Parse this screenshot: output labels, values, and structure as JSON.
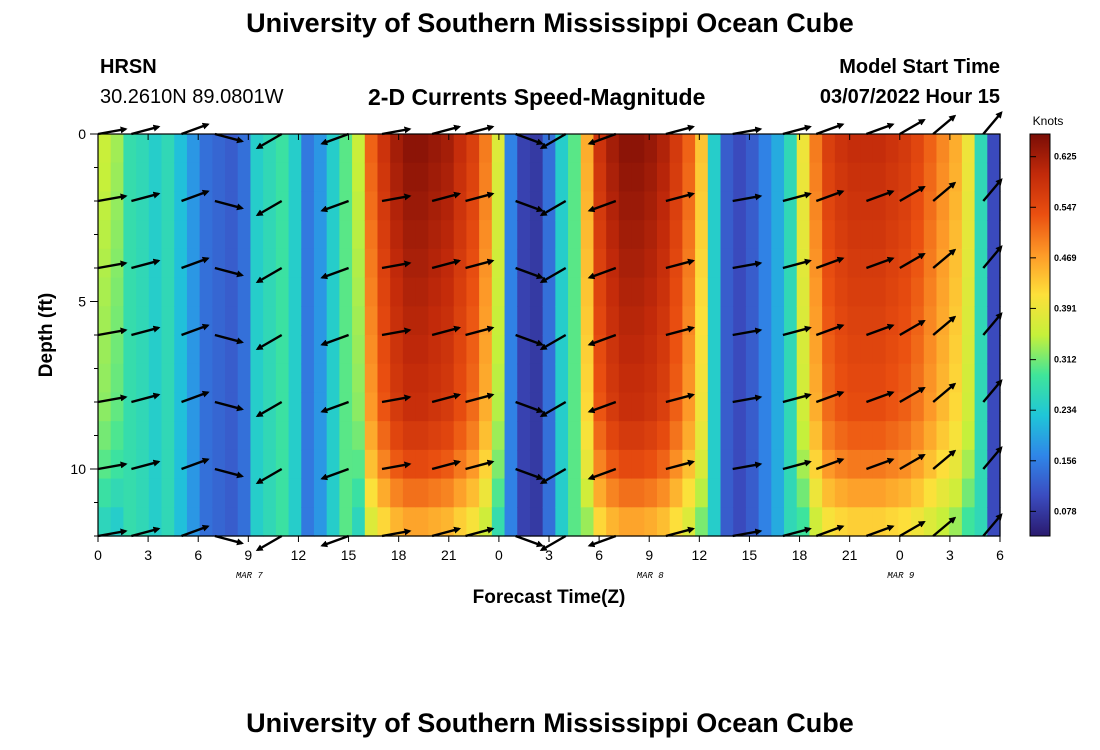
{
  "header": {
    "title": "University of Southern Mississippi Ocean Cube",
    "station": "HRSN",
    "location": "30.2610N  89.0801W",
    "subtitle": "2-D Currents Speed-Magnitude",
    "model_label": "Model Start Time",
    "model_time": "03/07/2022 Hour 15"
  },
  "footer": {
    "title": "University of Southern Mississippi Ocean Cube"
  },
  "chart_data": {
    "type": "heatmap",
    "xlabel": "Forecast Time(Z)",
    "ylabel": "Depth (ft)",
    "x_tick_labels": [
      "0",
      "3",
      "6",
      "9",
      "12",
      "15",
      "18",
      "21",
      "0",
      "3",
      "6",
      "9",
      "12",
      "15",
      "18",
      "21",
      "0",
      "3",
      "6"
    ],
    "date_labels": [
      {
        "text": "MAR 7",
        "at_tick": 3
      },
      {
        "text": "MAR 8",
        "at_tick": 11
      },
      {
        "text": "MAR 9",
        "at_tick": 16
      }
    ],
    "y_ticks": [
      0,
      5,
      10
    ],
    "ylim": [
      0,
      12
    ],
    "x_range_hours": [
      0,
      54
    ],
    "colorbar": {
      "label": "Knots",
      "min": 0.04,
      "max": 0.66,
      "ticks": [
        "0.625",
        "0.547",
        "0.469",
        "0.391",
        "0.312",
        "0.234",
        "0.156",
        "0.078"
      ],
      "colors": [
        "#2a1a6e",
        "#3b4cc0",
        "#2f86e8",
        "#1fc6d8",
        "#3fe59a",
        "#c6f03a",
        "#fde03a",
        "#fd9a28",
        "#ea4f10",
        "#c22a0a",
        "#7a0d06"
      ]
    },
    "speed_by_column": [
      0.34,
      0.32,
      0.27,
      0.26,
      0.24,
      0.26,
      0.22,
      0.18,
      0.14,
      0.13,
      0.12,
      0.14,
      0.24,
      0.26,
      0.28,
      0.24,
      0.15,
      0.18,
      0.24,
      0.3,
      0.34,
      0.5,
      0.56,
      0.6,
      0.62,
      0.62,
      0.61,
      0.6,
      0.57,
      0.54,
      0.48,
      0.36,
      0.16,
      0.09,
      0.08,
      0.14,
      0.24,
      0.3,
      0.44,
      0.56,
      0.6,
      0.62,
      0.62,
      0.61,
      0.59,
      0.55,
      0.5,
      0.42,
      0.24,
      0.12,
      0.1,
      0.12,
      0.16,
      0.2,
      0.26,
      0.38,
      0.48,
      0.54,
      0.56,
      0.57,
      0.57,
      0.57,
      0.56,
      0.55,
      0.53,
      0.5,
      0.47,
      0.44,
      0.38,
      0.26,
      0.1
    ],
    "depth_speed_factor": [
      1.04,
      1.03,
      1.02,
      1.01,
      1.0,
      0.99,
      0.98,
      0.97,
      0.96,
      0.95,
      0.92,
      0.88,
      0.82,
      0.75
    ],
    "vector_hours": [
      0,
      2,
      5,
      7,
      11,
      15,
      17,
      20,
      22,
      25,
      28,
      31,
      34,
      38,
      41,
      43,
      46,
      48,
      50,
      53
    ],
    "vector_depths": [
      0,
      2,
      4,
      6,
      8,
      10,
      12
    ],
    "vector_directions_deg": [
      80,
      75,
      70,
      105,
      240,
      250,
      80,
      75,
      75,
      110,
      240,
      250,
      75,
      80,
      75,
      70,
      70,
      60,
      50,
      40
    ]
  }
}
